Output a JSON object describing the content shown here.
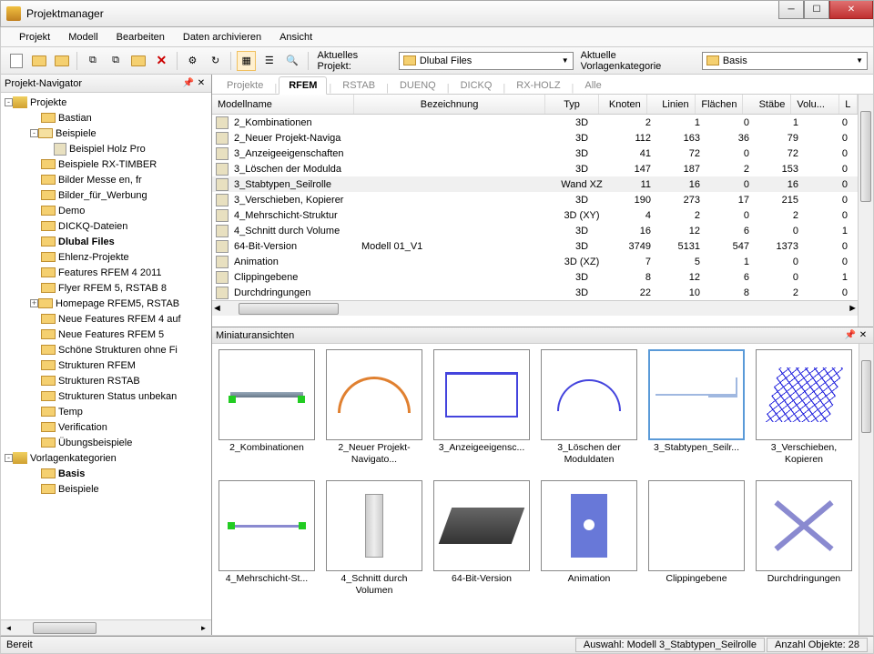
{
  "window": {
    "title": "Projektmanager"
  },
  "menu": [
    "Projekt",
    "Modell",
    "Bearbeiten",
    "Daten archivieren",
    "Ansicht"
  ],
  "toolbar": {
    "current_project_label": "Aktuelles Projekt:",
    "current_project_value": "Dlubal Files",
    "template_label": "Aktuelle Vorlagenkategorie",
    "template_value": "Basis"
  },
  "navigator": {
    "title": "Projekt-Navigator",
    "sections": {
      "projects_root": "Projekte",
      "templates_root": "Vorlagenkategorien"
    },
    "projects": [
      {
        "label": "Bastian",
        "bold": false,
        "indent": 2
      },
      {
        "label": "Beispiele",
        "bold": false,
        "indent": 2,
        "exp": "-",
        "open": true
      },
      {
        "label": "Beispiel Holz Pro",
        "bold": false,
        "indent": 3,
        "model": true
      },
      {
        "label": "Beispiele RX-TIMBER",
        "bold": false,
        "indent": 2
      },
      {
        "label": "Bilder Messe en, fr",
        "bold": false,
        "indent": 2
      },
      {
        "label": "Bilder_für_Werbung",
        "bold": false,
        "indent": 2
      },
      {
        "label": "Demo",
        "bold": false,
        "indent": 2
      },
      {
        "label": "DICKQ-Dateien",
        "bold": false,
        "indent": 2
      },
      {
        "label": "Dlubal Files",
        "bold": true,
        "indent": 2
      },
      {
        "label": "Ehlenz-Projekte",
        "bold": false,
        "indent": 2
      },
      {
        "label": "Features RFEM 4 2011",
        "bold": false,
        "indent": 2
      },
      {
        "label": "Flyer RFEM 5, RSTAB 8",
        "bold": false,
        "indent": 2
      },
      {
        "label": "Homepage RFEM5, RSTAB",
        "bold": false,
        "indent": 2,
        "exp": "+"
      },
      {
        "label": "Neue Features RFEM 4 auf",
        "bold": false,
        "indent": 2
      },
      {
        "label": "Neue Features RFEM 5",
        "bold": false,
        "indent": 2
      },
      {
        "label": "Schöne Strukturen ohne Fi",
        "bold": false,
        "indent": 2
      },
      {
        "label": "Strukturen RFEM",
        "bold": false,
        "indent": 2
      },
      {
        "label": "Strukturen RSTAB",
        "bold": false,
        "indent": 2
      },
      {
        "label": "Strukturen Status unbekan",
        "bold": false,
        "indent": 2
      },
      {
        "label": "Temp",
        "bold": false,
        "indent": 2
      },
      {
        "label": "Verification",
        "bold": false,
        "indent": 2
      },
      {
        "label": "Übungsbeispiele",
        "bold": false,
        "indent": 2
      }
    ],
    "templates": [
      {
        "label": "Basis",
        "bold": true,
        "indent": 2
      },
      {
        "label": "Beispiele",
        "bold": false,
        "indent": 2
      }
    ]
  },
  "tabs": [
    "Projekte",
    "RFEM",
    "RSTAB",
    "DUENQ",
    "DICKQ",
    "RX-HOLZ",
    "Alle"
  ],
  "tabs_active": 1,
  "table": {
    "headers": {
      "name": "Modellname",
      "bez": "Bezeichnung",
      "typ": "Typ",
      "knoten": "Knoten",
      "linien": "Linien",
      "flaechen": "Flächen",
      "staebe": "Stäbe",
      "volu": "Volu...",
      "l": "L"
    },
    "rows": [
      {
        "name": "2_Kombinationen",
        "bez": "",
        "typ": "3D",
        "k": 2,
        "l": 1,
        "f": 0,
        "s": 1,
        "v": 0
      },
      {
        "name": "2_Neuer Projekt-Naviga",
        "bez": "",
        "typ": "3D",
        "k": 112,
        "l": 163,
        "f": 36,
        "s": 79,
        "v": 0
      },
      {
        "name": "3_Anzeigeeigenschaften",
        "bez": "",
        "typ": "3D",
        "k": 41,
        "l": 72,
        "f": 0,
        "s": 72,
        "v": 0
      },
      {
        "name": "3_Löschen der Modulda",
        "bez": "",
        "typ": "3D",
        "k": 147,
        "l": 187,
        "f": 2,
        "s": 153,
        "v": 0
      },
      {
        "name": "3_Stabtypen_Seilrolle",
        "bez": "",
        "typ": "Wand XZ",
        "k": 11,
        "l": 16,
        "f": 0,
        "s": 16,
        "v": 0,
        "sel": true
      },
      {
        "name": "3_Verschieben, Kopierer",
        "bez": "",
        "typ": "3D",
        "k": 190,
        "l": 273,
        "f": 17,
        "s": 215,
        "v": 0
      },
      {
        "name": "4_Mehrschicht-Struktur",
        "bez": "",
        "typ": "3D (XY)",
        "k": 4,
        "l": 2,
        "f": 0,
        "s": 2,
        "v": 0
      },
      {
        "name": "4_Schnitt durch Volume",
        "bez": "",
        "typ": "3D",
        "k": 16,
        "l": 12,
        "f": 6,
        "s": 0,
        "v": 1
      },
      {
        "name": "64-Bit-Version",
        "bez": "Modell 01_V1",
        "typ": "3D",
        "k": 3749,
        "l": 5131,
        "f": 547,
        "s": 1373,
        "v": 0
      },
      {
        "name": "Animation",
        "bez": "",
        "typ": "3D (XZ)",
        "k": 7,
        "l": 5,
        "f": 1,
        "s": 0,
        "v": 0
      },
      {
        "name": "Clippingebene",
        "bez": "",
        "typ": "3D",
        "k": 8,
        "l": 12,
        "f": 6,
        "s": 0,
        "v": 1
      },
      {
        "name": "Durchdringungen",
        "bez": "",
        "typ": "3D",
        "k": 22,
        "l": 10,
        "f": 8,
        "s": 2,
        "v": 0
      }
    ]
  },
  "thumbnails": {
    "title": "Miniaturansichten",
    "items": [
      {
        "label": "2_Kombinationen",
        "g": "g-beam"
      },
      {
        "label": "2_Neuer Projekt-Navigato...",
        "g": "g-arch"
      },
      {
        "label": "3_Anzeigeeigensc...",
        "g": "g-frame"
      },
      {
        "label": "3_Löschen der Moduldaten",
        "g": "g-dome"
      },
      {
        "label": "3_Stabtypen_Seilr...",
        "g": "g-truss",
        "sel": true
      },
      {
        "label": "3_Verschieben, Kopieren",
        "g": "g-grid"
      },
      {
        "label": "4_Mehrschicht-St...",
        "g": "g-beam2"
      },
      {
        "label": "4_Schnitt durch Volumen",
        "g": "g-col"
      },
      {
        "label": "64-Bit-Version",
        "g": "g-building"
      },
      {
        "label": "Animation",
        "g": "g-anim"
      },
      {
        "label": "Clippingebene",
        "g": "g-empty"
      },
      {
        "label": "Durchdringungen",
        "g": "g-cross"
      }
    ]
  },
  "status": {
    "ready": "Bereit",
    "selection": "Auswahl: Modell 3_Stabtypen_Seilrolle",
    "count": "Anzahl Objekte: 28"
  }
}
